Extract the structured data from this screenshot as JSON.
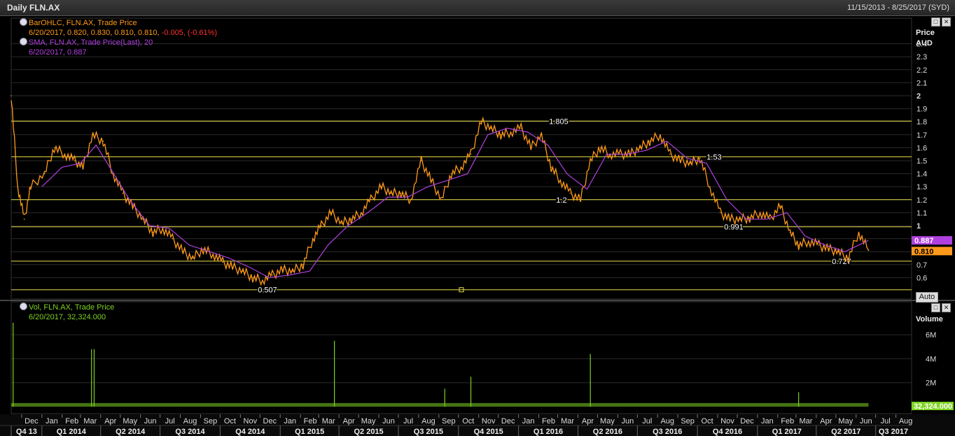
{
  "window": {
    "title": "Daily FLN.AX",
    "date_range": "11/15/2013 - 8/25/2017 (SYD)"
  },
  "price_legend": {
    "line1": "BarOHLC, FLN.AX, Trade Price",
    "line2_prefix": "6/20/2017, 0.820, 0.830, 0.810, 0.810, ",
    "line2_change": "-0.005, (-0.61%)",
    "line3": "SMA, FLN.AX, Trade Price(Last), 20",
    "line4": "6/20/2017, 0.887"
  },
  "volume_legend": {
    "line1": "Vol, FLN.AX, Trade Price",
    "line2": "6/20/2017, 32,324.000"
  },
  "auto_label": "Auto",
  "colors": {
    "price": "#ff9a1a",
    "sma": "#b040e0",
    "level_lines": "#e8e04a",
    "volume": "#7ed321",
    "grid": "#2a2a2a",
    "background": "#000000",
    "change_negative": "#ff3030"
  },
  "chart_data": [
    {
      "type": "line",
      "title": "Daily FLN.AX",
      "axis_title": "Price",
      "unit": "AUD",
      "ylim": [
        0.5,
        2.5
      ],
      "ytick_labels": [
        "0.6",
        "0.7",
        "0.8",
        "0.9",
        "1",
        "1.1",
        "1.2",
        "1.3",
        "1.4",
        "1.5",
        "1.6",
        "1.7",
        "1.8",
        "1.9",
        "2",
        "2.1",
        "2.2",
        "2.3",
        "2.4"
      ],
      "grid": true,
      "series": [
        {
          "name": "BarOHLC, FLN.AX, Trade Price",
          "x": [
            "2013-11-15",
            "2013-11-25",
            "2013-12-05",
            "2013-12-15",
            "2014-01-05",
            "2014-01-20",
            "2014-02-05",
            "2014-02-20",
            "2014-03-05",
            "2014-03-20",
            "2014-04-05",
            "2014-04-20",
            "2014-05-05",
            "2014-05-20",
            "2014-06-05",
            "2014-06-20",
            "2014-07-05",
            "2014-07-20",
            "2014-08-05",
            "2014-08-20",
            "2014-09-05",
            "2014-09-20",
            "2014-10-05",
            "2014-10-20",
            "2014-11-05",
            "2014-11-20",
            "2014-12-05",
            "2014-12-20",
            "2015-01-05",
            "2015-01-20",
            "2015-02-05",
            "2015-02-20",
            "2015-03-05",
            "2015-03-20",
            "2015-04-05",
            "2015-04-20",
            "2015-05-05",
            "2015-05-20",
            "2015-06-05",
            "2015-06-20",
            "2015-07-05",
            "2015-07-20",
            "2015-08-05",
            "2015-08-20",
            "2015-09-05",
            "2015-09-20",
            "2015-10-05",
            "2015-10-20",
            "2015-11-05",
            "2015-11-20",
            "2015-12-05",
            "2015-12-20",
            "2016-01-05",
            "2016-01-20",
            "2016-02-05",
            "2016-02-20",
            "2016-03-05",
            "2016-03-20",
            "2016-04-05",
            "2016-04-20",
            "2016-05-05",
            "2016-05-20",
            "2016-06-05",
            "2016-06-20",
            "2016-07-05",
            "2016-07-20",
            "2016-08-05",
            "2016-08-20",
            "2016-09-05",
            "2016-09-20",
            "2016-10-05",
            "2016-10-20",
            "2016-11-05",
            "2016-11-20",
            "2016-12-05",
            "2016-12-20",
            "2017-01-05",
            "2017-01-20",
            "2017-02-05",
            "2017-02-20",
            "2017-03-05",
            "2017-03-20",
            "2017-04-05",
            "2017-04-20",
            "2017-05-05",
            "2017-05-20",
            "2017-06-05",
            "2017-06-20"
          ],
          "values": [
            2.0,
            1.3,
            1.05,
            1.3,
            1.4,
            1.6,
            1.55,
            1.5,
            1.45,
            1.7,
            1.65,
            1.4,
            1.25,
            1.15,
            1.05,
            0.95,
            0.98,
            0.9,
            0.8,
            0.75,
            0.82,
            0.78,
            0.72,
            0.68,
            0.65,
            0.6,
            0.58,
            0.62,
            0.66,
            0.65,
            0.7,
            0.9,
            1.0,
            1.1,
            1.02,
            1.05,
            1.1,
            1.2,
            1.3,
            1.25,
            1.25,
            1.2,
            1.5,
            1.35,
            1.2,
            1.4,
            1.45,
            1.55,
            1.8,
            1.75,
            1.7,
            1.72,
            1.75,
            1.6,
            1.7,
            1.45,
            1.35,
            1.25,
            1.2,
            1.5,
            1.6,
            1.55,
            1.55,
            1.55,
            1.6,
            1.65,
            1.7,
            1.55,
            1.5,
            1.48,
            1.52,
            1.3,
            1.1,
            1.05,
            1.05,
            1.06,
            1.1,
            1.05,
            1.15,
            0.95,
            0.85,
            0.88,
            0.85,
            0.82,
            0.8,
            0.75,
            0.95,
            0.81
          ]
        },
        {
          "name": "SMA, FLN.AX, Trade Price(Last), 20",
          "x": [
            "2014-01-01",
            "2014-02-01",
            "2014-03-01",
            "2014-03-25",
            "2014-04-15",
            "2014-05-15",
            "2014-06-15",
            "2014-07-15",
            "2014-08-15",
            "2014-09-15",
            "2014-10-15",
            "2014-11-15",
            "2014-12-15",
            "2015-01-15",
            "2015-02-15",
            "2015-03-15",
            "2015-04-15",
            "2015-05-15",
            "2015-06-15",
            "2015-07-15",
            "2015-08-15",
            "2015-09-15",
            "2015-10-15",
            "2015-11-15",
            "2015-12-15",
            "2016-01-15",
            "2016-02-15",
            "2016-03-15",
            "2016-04-15",
            "2016-05-15",
            "2016-06-15",
            "2016-07-15",
            "2016-08-15",
            "2016-09-15",
            "2016-10-15",
            "2016-11-15",
            "2016-12-15",
            "2017-01-15",
            "2017-02-15",
            "2017-03-15",
            "2017-04-15",
            "2017-05-15",
            "2017-06-20"
          ],
          "values": [
            1.3,
            1.45,
            1.48,
            1.62,
            1.45,
            1.2,
            1.0,
            0.98,
            0.85,
            0.8,
            0.75,
            0.68,
            0.6,
            0.62,
            0.65,
            0.85,
            1.0,
            1.1,
            1.22,
            1.22,
            1.3,
            1.35,
            1.4,
            1.7,
            1.75,
            1.72,
            1.62,
            1.4,
            1.28,
            1.55,
            1.55,
            1.58,
            1.65,
            1.52,
            1.48,
            1.2,
            1.05,
            1.05,
            1.1,
            0.92,
            0.85,
            0.8,
            0.887
          ]
        }
      ],
      "horizontal_levels": [
        {
          "value": 1.805,
          "label": "1.805"
        },
        {
          "value": 1.53,
          "label": "1.53"
        },
        {
          "value": 1.2,
          "label": "1.2"
        },
        {
          "value": 0.991,
          "label": "0.991"
        },
        {
          "value": 0.727,
          "label": "0.727"
        },
        {
          "value": 0.507,
          "label": "0.507"
        }
      ],
      "last_value_tags": [
        {
          "label": "0.887",
          "color": "#b040e0"
        },
        {
          "label": "0.810",
          "color": "#ff9a1a"
        }
      ]
    },
    {
      "type": "bar",
      "axis_title": "Volume",
      "ylim": [
        0,
        7000000
      ],
      "ytick_labels": [
        "2M",
        "4M",
        "6M"
      ],
      "spikes": [
        {
          "x": "2013-11-18",
          "value": 7000000
        },
        {
          "x": "2014-03-18",
          "value": 4800000
        },
        {
          "x": "2014-03-22",
          "value": 4800000
        },
        {
          "x": "2015-03-25",
          "value": 5500000
        },
        {
          "x": "2015-09-10",
          "value": 1500000
        },
        {
          "x": "2015-10-20",
          "value": 2500000
        },
        {
          "x": "2016-04-20",
          "value": 4400000
        },
        {
          "x": "2017-03-05",
          "value": 1200000
        }
      ],
      "baseline_volume": 300000,
      "last_value_tag": {
        "label": "32,324.000",
        "color": "#7ed321"
      }
    }
  ],
  "time_axis": {
    "months": [
      {
        "label": "Dec",
        "date": "2013-12-01"
      },
      {
        "label": "Jan",
        "date": "2014-01-01"
      },
      {
        "label": "Feb",
        "date": "2014-02-01"
      },
      {
        "label": "Mar",
        "date": "2014-03-01"
      },
      {
        "label": "Apr",
        "date": "2014-04-01"
      },
      {
        "label": "May",
        "date": "2014-05-01"
      },
      {
        "label": "Jun",
        "date": "2014-06-01"
      },
      {
        "label": "Jul",
        "date": "2014-07-01"
      },
      {
        "label": "Aug",
        "date": "2014-08-01"
      },
      {
        "label": "Sep",
        "date": "2014-09-01"
      },
      {
        "label": "Oct",
        "date": "2014-10-01"
      },
      {
        "label": "Nov",
        "date": "2014-11-01"
      },
      {
        "label": "Dec",
        "date": "2014-12-01"
      },
      {
        "label": "Jan",
        "date": "2015-01-01"
      },
      {
        "label": "Feb",
        "date": "2015-02-01"
      },
      {
        "label": "Mar",
        "date": "2015-03-01"
      },
      {
        "label": "Apr",
        "date": "2015-04-01"
      },
      {
        "label": "May",
        "date": "2015-05-01"
      },
      {
        "label": "Jun",
        "date": "2015-06-01"
      },
      {
        "label": "Jul",
        "date": "2015-07-01"
      },
      {
        "label": "Aug",
        "date": "2015-08-01"
      },
      {
        "label": "Sep",
        "date": "2015-09-01"
      },
      {
        "label": "Oct",
        "date": "2015-10-01"
      },
      {
        "label": "Nov",
        "date": "2015-11-01"
      },
      {
        "label": "Dec",
        "date": "2015-12-01"
      },
      {
        "label": "Jan",
        "date": "2016-01-01"
      },
      {
        "label": "Feb",
        "date": "2016-02-01"
      },
      {
        "label": "Mar",
        "date": "2016-03-01"
      },
      {
        "label": "Apr",
        "date": "2016-04-01"
      },
      {
        "label": "May",
        "date": "2016-05-01"
      },
      {
        "label": "Jun",
        "date": "2016-06-01"
      },
      {
        "label": "Jul",
        "date": "2016-07-01"
      },
      {
        "label": "Aug",
        "date": "2016-08-01"
      },
      {
        "label": "Sep",
        "date": "2016-09-01"
      },
      {
        "label": "Oct",
        "date": "2016-10-01"
      },
      {
        "label": "Nov",
        "date": "2016-11-01"
      },
      {
        "label": "Dec",
        "date": "2016-12-01"
      },
      {
        "label": "Jan",
        "date": "2017-01-01"
      },
      {
        "label": "Feb",
        "date": "2017-02-01"
      },
      {
        "label": "Mar",
        "date": "2017-03-01"
      },
      {
        "label": "Apr",
        "date": "2017-04-01"
      },
      {
        "label": "May",
        "date": "2017-05-01"
      },
      {
        "label": "Jun",
        "date": "2017-06-01"
      },
      {
        "label": "Jul",
        "date": "2017-07-01"
      },
      {
        "label": "Aug",
        "date": "2017-08-01"
      }
    ],
    "quarters": [
      {
        "label": "Q4 13",
        "date": "2013-11-15"
      },
      {
        "label": "Q1 2014",
        "date": "2014-01-01"
      },
      {
        "label": "Q2 2014",
        "date": "2014-04-01"
      },
      {
        "label": "Q3 2014",
        "date": "2014-07-01"
      },
      {
        "label": "Q4 2014",
        "date": "2014-10-01"
      },
      {
        "label": "Q1 2015",
        "date": "2015-01-01"
      },
      {
        "label": "Q2 2015",
        "date": "2015-04-01"
      },
      {
        "label": "Q3 2015",
        "date": "2015-07-01"
      },
      {
        "label": "Q4 2015",
        "date": "2015-10-01"
      },
      {
        "label": "Q1 2016",
        "date": "2016-01-01"
      },
      {
        "label": "Q2 2016",
        "date": "2016-04-01"
      },
      {
        "label": "Q3 2016",
        "date": "2016-07-01"
      },
      {
        "label": "Q4 2016",
        "date": "2016-10-01"
      },
      {
        "label": "Q1 2017",
        "date": "2017-01-01"
      },
      {
        "label": "Q2 2017",
        "date": "2017-04-01"
      },
      {
        "label": "Q3 2017",
        "date": "2017-07-01"
      }
    ]
  }
}
